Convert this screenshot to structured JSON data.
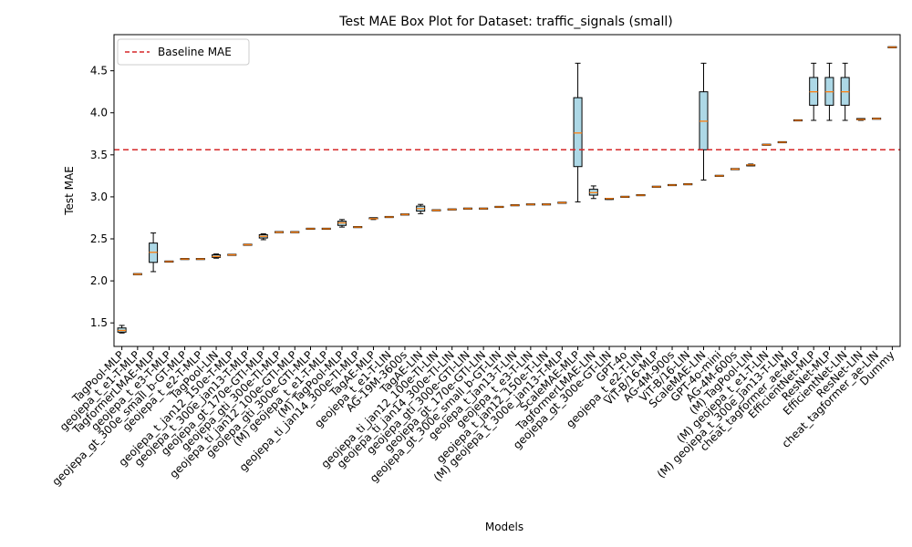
{
  "chart_data": {
    "type": "box",
    "title": "Test MAE Box Plot for Dataset: traffic_signals (small)",
    "xlabel": "Models",
    "ylabel": "Test MAE",
    "ylim": [
      1.22,
      4.93
    ],
    "yticks": [
      1.5,
      2.0,
      2.5,
      3.0,
      3.5,
      4.0,
      4.5
    ],
    "ytick_labels": [
      "1.5",
      "2.0",
      "2.5",
      "3.0",
      "3.5",
      "4.0",
      "4.5"
    ],
    "grid": false,
    "legend": {
      "placement": "top-left",
      "entries": [
        "Baseline MAE"
      ]
    },
    "baseline": {
      "name": "Baseline MAE",
      "value": 3.56,
      "color": "#d62728"
    },
    "box_fill": "#add8e6",
    "median_color": "#ff7f0e",
    "boxes": [
      {
        "label": "TagPool-MLP",
        "min": 1.38,
        "q1": 1.39,
        "median": 1.41,
        "q3": 1.44,
        "max": 1.47
      },
      {
        "label": "geojepa_t_e1-T-MLP",
        "min": 2.08,
        "q1": 2.08,
        "median": 2.08,
        "q3": 2.08,
        "max": 2.08
      },
      {
        "label": "TagformerLMAE-MLP",
        "min": 2.11,
        "q1": 2.22,
        "median": 2.34,
        "q3": 2.45,
        "max": 2.57
      },
      {
        "label": "geojepa_t_e3-T-MLP",
        "min": 2.23,
        "q1": 2.23,
        "median": 2.23,
        "q3": 2.23,
        "max": 2.23
      },
      {
        "label": "geojepa_gt_300e_small_b-GT-MLP",
        "min": 2.26,
        "q1": 2.26,
        "median": 2.26,
        "q3": 2.26,
        "max": 2.26
      },
      {
        "label": "geojepa_t_e2-T-MLP",
        "min": 2.26,
        "q1": 2.26,
        "median": 2.26,
        "q3": 2.26,
        "max": 2.26
      },
      {
        "label": "TagPool-LIN",
        "min": 2.27,
        "q1": 2.28,
        "median": 2.29,
        "q3": 2.31,
        "max": 2.32
      },
      {
        "label": "geojepa_t_jan12_150e-T-MLP",
        "min": 2.31,
        "q1": 2.31,
        "median": 2.31,
        "q3": 2.31,
        "max": 2.31
      },
      {
        "label": "geojepa_t_300e_jan13-T-MLP",
        "min": 2.43,
        "q1": 2.43,
        "median": 2.43,
        "q3": 2.43,
        "max": 2.43
      },
      {
        "label": "geojepa_gt_170e-GTI-MLP",
        "min": 2.49,
        "q1": 2.51,
        "median": 2.53,
        "q3": 2.55,
        "max": 2.56
      },
      {
        "label": "geojepa_gti_300e-TI-MLP",
        "min": 2.58,
        "q1": 2.58,
        "median": 2.58,
        "q3": 2.58,
        "max": 2.58
      },
      {
        "label": "geojepa_ti_jan12_100e-GTI-MLP",
        "min": 2.58,
        "q1": 2.58,
        "median": 2.58,
        "q3": 2.58,
        "max": 2.58
      },
      {
        "label": "geojepa_gti_300e-GTI-MLP",
        "min": 2.62,
        "q1": 2.62,
        "median": 2.62,
        "q3": 2.62,
        "max": 2.62
      },
      {
        "label": "(M) geojepa_t_e1-T-MLP",
        "min": 2.62,
        "q1": 2.62,
        "median": 2.62,
        "q3": 2.62,
        "max": 2.62
      },
      {
        "label": "(M) TagPool-MLP",
        "min": 2.64,
        "q1": 2.66,
        "median": 2.69,
        "q3": 2.71,
        "max": 2.73
      },
      {
        "label": "geojepa_ti_jan14_300e-TI-MLP",
        "min": 2.64,
        "q1": 2.64,
        "median": 2.64,
        "q3": 2.64,
        "max": 2.64
      },
      {
        "label": "TagAE-MLP",
        "min": 2.73,
        "q1": 2.74,
        "median": 2.74,
        "q3": 2.75,
        "max": 2.75
      },
      {
        "label": "geojepa_t_e1-T-LIN",
        "min": 2.76,
        "q1": 2.76,
        "median": 2.76,
        "q3": 2.76,
        "max": 2.76
      },
      {
        "label": "AG-19M-3600s",
        "min": 2.79,
        "q1": 2.79,
        "median": 2.79,
        "q3": 2.79,
        "max": 2.79
      },
      {
        "label": "TagAE-LIN",
        "min": 2.8,
        "q1": 2.83,
        "median": 2.86,
        "q3": 2.89,
        "max": 2.91
      },
      {
        "label": "geojepa_ti_jan12_100e-TI-LIN",
        "min": 2.84,
        "q1": 2.84,
        "median": 2.84,
        "q3": 2.84,
        "max": 2.84
      },
      {
        "label": "geojepa_ti_jan14_300e-TI-LIN",
        "min": 2.85,
        "q1": 2.85,
        "median": 2.85,
        "q3": 2.85,
        "max": 2.85
      },
      {
        "label": "geojepa_gti_300e-GTI-LIN",
        "min": 2.86,
        "q1": 2.86,
        "median": 2.86,
        "q3": 2.86,
        "max": 2.86
      },
      {
        "label": "geojepa_gt_170e-GTI-LIN",
        "min": 2.86,
        "q1": 2.86,
        "median": 2.86,
        "q3": 2.86,
        "max": 2.86
      },
      {
        "label": "geojepa_gt_300e_small_b-GT-LIN",
        "min": 2.88,
        "q1": 2.88,
        "median": 2.88,
        "q3": 2.88,
        "max": 2.88
      },
      {
        "label": "geojepa_t_jan13-T-LIN",
        "min": 2.9,
        "q1": 2.9,
        "median": 2.9,
        "q3": 2.9,
        "max": 2.9
      },
      {
        "label": "geojepa_t_e3-T-LIN",
        "min": 2.91,
        "q1": 2.91,
        "median": 2.91,
        "q3": 2.91,
        "max": 2.91
      },
      {
        "label": "geojepa_t_jan12_150e-T-LIN",
        "min": 2.91,
        "q1": 2.91,
        "median": 2.91,
        "q3": 2.91,
        "max": 2.91
      },
      {
        "label": "(M) geojepa_t_300e_jan13-T-MLP",
        "min": 2.93,
        "q1": 2.93,
        "median": 2.93,
        "q3": 2.93,
        "max": 2.93
      },
      {
        "label": "ScaleMAE-MLP",
        "min": 2.94,
        "q1": 3.36,
        "median": 3.76,
        "q3": 4.18,
        "max": 4.59
      },
      {
        "label": "TagformerLMAE-LIN",
        "min": 2.98,
        "q1": 3.02,
        "median": 3.05,
        "q3": 3.09,
        "max": 3.13
      },
      {
        "label": "geojepa_gt_300e-GT-LIN",
        "min": 2.97,
        "q1": 2.97,
        "median": 2.98,
        "q3": 2.98,
        "max": 2.98
      },
      {
        "label": "GPT-4o",
        "min": 3.0,
        "q1": 3.0,
        "median": 3.0,
        "q3": 3.0,
        "max": 3.0
      },
      {
        "label": "geojepa_t_e2-T-LIN",
        "min": 3.02,
        "q1": 3.02,
        "median": 3.02,
        "q3": 3.02,
        "max": 3.02
      },
      {
        "label": "ViT-B/16-MLP",
        "min": 3.12,
        "q1": 3.12,
        "median": 3.12,
        "q3": 3.12,
        "max": 3.12
      },
      {
        "label": "AG-4M-900s",
        "min": 3.14,
        "q1": 3.14,
        "median": 3.14,
        "q3": 3.14,
        "max": 3.14
      },
      {
        "label": "ViT-B/16-LIN",
        "min": 3.15,
        "q1": 3.15,
        "median": 3.15,
        "q3": 3.15,
        "max": 3.15
      },
      {
        "label": "ScaleMAE-LIN",
        "min": 3.2,
        "q1": 3.56,
        "median": 3.9,
        "q3": 4.25,
        "max": 4.59
      },
      {
        "label": "GPT-4o-mini",
        "min": 3.25,
        "q1": 3.25,
        "median": 3.25,
        "q3": 3.25,
        "max": 3.25
      },
      {
        "label": "AG-4M-600s",
        "min": 3.33,
        "q1": 3.33,
        "median": 3.33,
        "q3": 3.33,
        "max": 3.33
      },
      {
        "label": "(M) TagPool-LIN",
        "min": 3.37,
        "q1": 3.37,
        "median": 3.38,
        "q3": 3.38,
        "max": 3.39
      },
      {
        "label": "(M) geojepa_t_e1-T-LIN",
        "min": 3.62,
        "q1": 3.62,
        "median": 3.62,
        "q3": 3.62,
        "max": 3.62
      },
      {
        "label": "(M) geojepa_t_300e_jan13-T-LIN",
        "min": 3.65,
        "q1": 3.65,
        "median": 3.65,
        "q3": 3.65,
        "max": 3.65
      },
      {
        "label": "cheat_tagformer_ae-MLP",
        "min": 3.91,
        "q1": 3.91,
        "median": 3.91,
        "q3": 3.91,
        "max": 3.91
      },
      {
        "label": "EfficientNet-MLP",
        "min": 3.91,
        "q1": 4.09,
        "median": 4.25,
        "q3": 4.42,
        "max": 4.59
      },
      {
        "label": "ResNet-MLP",
        "min": 3.91,
        "q1": 4.09,
        "median": 4.25,
        "q3": 4.42,
        "max": 4.59
      },
      {
        "label": "EfficientNet-LIN",
        "min": 3.91,
        "q1": 4.09,
        "median": 4.25,
        "q3": 4.42,
        "max": 4.59
      },
      {
        "label": "ResNet-LIN",
        "min": 3.91,
        "q1": 3.92,
        "median": 3.92,
        "q3": 3.93,
        "max": 3.93
      },
      {
        "label": "cheat_tagformer_ae-LIN",
        "min": 3.93,
        "q1": 3.93,
        "median": 3.93,
        "q3": 3.93,
        "max": 3.93
      },
      {
        "label": "Dummy",
        "min": 4.78,
        "q1": 4.78,
        "median": 4.78,
        "q3": 4.78,
        "max": 4.78
      }
    ]
  }
}
